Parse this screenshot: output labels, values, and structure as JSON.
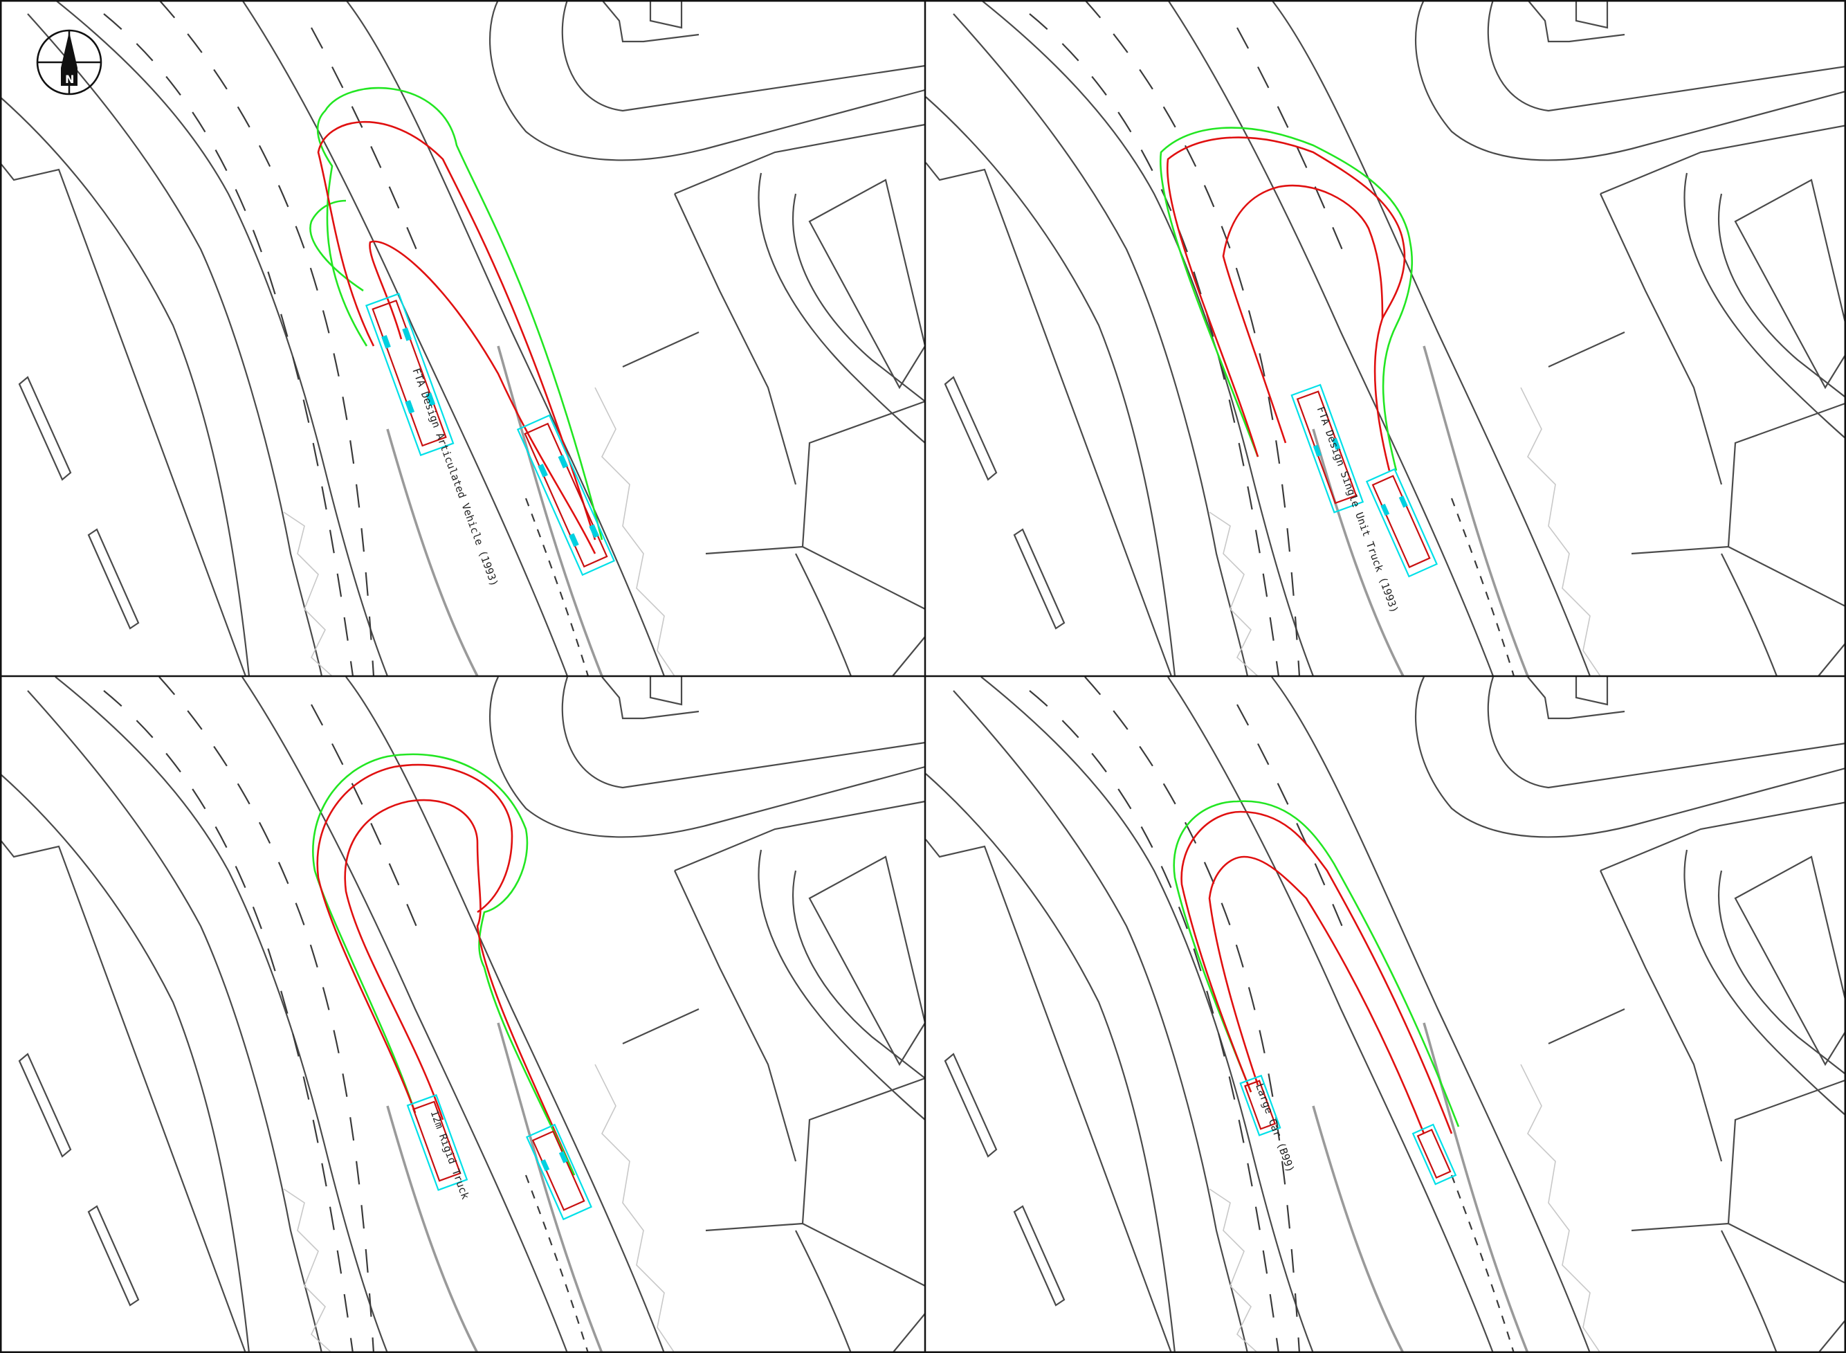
{
  "compass": {
    "label": "N",
    "icon": "north-arrow-icon"
  },
  "panels": [
    {
      "id": "panel-top-left",
      "vehicle_labels": [
        "FTA Design Articulated Vehicle (1993)",
        "FTA Design Articulated Vehicle (1993)"
      ]
    },
    {
      "id": "panel-top-right",
      "vehicle_labels": [
        "FTA Design Single Unit Truck (1993)"
      ]
    },
    {
      "id": "panel-bottom-left",
      "vehicle_labels": [
        "12m Rigid Truck"
      ]
    },
    {
      "id": "panel-bottom-right",
      "vehicle_labels": [
        "Large Car (B99)"
      ]
    }
  ],
  "colors": {
    "outer_swept_path": "#22e622",
    "body_swept_path": "#e01010",
    "vehicle_outline": "#00e0e8",
    "basemap": "#4a4a4a"
  }
}
